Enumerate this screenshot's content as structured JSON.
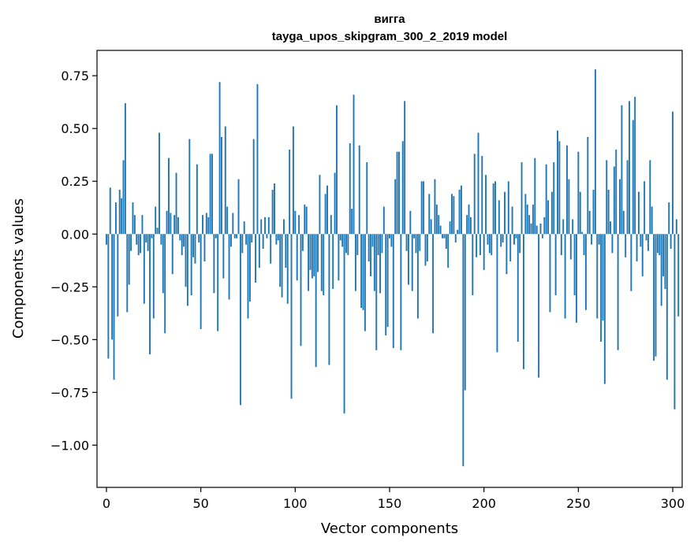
{
  "chart_data": {
    "type": "bar",
    "title": "вигга",
    "subtitle": "tayga_upos_skipgram_300_2_2019 model",
    "xlabel": "Vector components",
    "ylabel": "Components values",
    "xlim": [
      -5,
      305
    ],
    "ylim": [
      -1.2,
      0.87
    ],
    "xticks": [
      0,
      50,
      100,
      150,
      200,
      250,
      300
    ],
    "xtick_labels": [
      "0",
      "50",
      "100",
      "150",
      "200",
      "250",
      "300"
    ],
    "yticks": [
      0.75,
      0.5,
      0.25,
      0.0,
      -0.25,
      -0.5,
      -0.75,
      -1.0
    ],
    "ytick_labels": [
      "0.75",
      "0.50",
      "0.25",
      "0.00",
      "−0.25",
      "−0.50",
      "−0.75",
      "−1.00"
    ],
    "grid": false,
    "color": "#1f77b4",
    "values": [
      -0.05,
      -0.59,
      0.22,
      -0.5,
      -0.69,
      0.15,
      -0.39,
      0.21,
      0.17,
      0.35,
      0.62,
      -0.37,
      -0.24,
      -0.08,
      0.15,
      0.09,
      -0.05,
      -0.1,
      -0.09,
      0.09,
      -0.33,
      -0.04,
      -0.08,
      -0.57,
      -0.02,
      -0.4,
      0.13,
      0.03,
      0.48,
      -0.05,
      -0.28,
      -0.47,
      0.11,
      0.36,
      0.1,
      -0.19,
      0.09,
      0.29,
      0.08,
      -0.03,
      -0.1,
      -0.06,
      -0.25,
      -0.34,
      0.45,
      -0.29,
      -0.11,
      -0.14,
      0.33,
      -0.04,
      -0.45,
      0.09,
      -0.13,
      0.1,
      0.08,
      0.38,
      0.38,
      -0.28,
      -0.02,
      -0.46,
      0.72,
      0.46,
      -0.21,
      0.51,
      0.13,
      -0.31,
      -0.06,
      0.1,
      -0.02,
      -0.02,
      0.26,
      -0.81,
      -0.09,
      0.06,
      -0.05,
      -0.4,
      -0.32,
      -0.04,
      0.45,
      -0.23,
      0.71,
      -0.16,
      0.07,
      -0.07,
      0.08,
      -0.02,
      0.08,
      -0.14,
      0.21,
      0.24,
      -0.05,
      -0.03,
      -0.25,
      -0.3,
      0.07,
      -0.16,
      -0.33,
      0.4,
      -0.78,
      0.51,
      0.11,
      -0.22,
      0.09,
      -0.53,
      -0.08,
      0.14,
      0.13,
      -0.27,
      -0.17,
      -0.21,
      -0.2,
      -0.63,
      -0.18,
      0.28,
      -0.27,
      -0.29,
      0.19,
      0.23,
      -0.62,
      0.09,
      -0.26,
      0.29,
      0.61,
      -0.22,
      -0.03,
      -0.06,
      -0.85,
      -0.09,
      -0.1,
      0.43,
      0.12,
      0.66,
      -0.27,
      -0.1,
      0.42,
      -0.35,
      -0.36,
      -0.46,
      0.34,
      -0.13,
      -0.2,
      -0.06,
      -0.27,
      -0.55,
      -0.1,
      -0.28,
      -0.09,
      0.13,
      -0.48,
      -0.44,
      -0.02,
      -0.06,
      -0.54,
      0.26,
      0.39,
      0.39,
      -0.55,
      0.44,
      0.63,
      -0.08,
      -0.24,
      0.11,
      -0.27,
      -0.02,
      -0.09,
      -0.4,
      -0.08,
      0.25,
      0.25,
      -0.15,
      -0.13,
      0.19,
      0.07,
      -0.47,
      0.26,
      0.14,
      0.09,
      0.04,
      -0.02,
      -0.02,
      -0.07,
      -0.16,
      0.06,
      0.19,
      0.18,
      -0.04,
      0.02,
      0.21,
      0.23,
      -1.1,
      -0.74,
      0.09,
      0.14,
      0.08,
      -0.29,
      0.38,
      -0.11,
      0.48,
      -0.1,
      0.37,
      -0.17,
      0.28,
      -0.05,
      -0.09,
      -0.1,
      0.24,
      0.25,
      -0.56,
      0.16,
      -0.06,
      -0.04,
      0.2,
      -0.19,
      0.25,
      -0.13,
      0.13,
      -0.05,
      -0.02,
      -0.51,
      -0.09,
      0.34,
      -0.64,
      0.19,
      0.14,
      0.09,
      0.05,
      0.14,
      0.36,
      0.04,
      -0.68,
      0.05,
      -0.02,
      0.08,
      0.33,
      0.16,
      -0.37,
      0.2,
      0.34,
      -0.29,
      0.49,
      0.44,
      -0.1,
      0.07,
      -0.4,
      0.42,
      0.26,
      -0.12,
      0.07,
      -0.29,
      -0.42,
      0.39,
      0.2,
      0.01,
      -0.1,
      -0.36,
      0.46,
      0.11,
      -0.05,
      0.21,
      0.78,
      -0.4,
      -0.05,
      -0.51,
      -0.41,
      -0.71,
      0.35,
      0.21,
      0.06,
      -0.09,
      0.32,
      0.4,
      -0.55,
      0.26,
      0.61,
      0.11,
      -0.11,
      0.35,
      0.63,
      -0.27,
      0.54,
      0.65,
      -0.13,
      0.2,
      -0.06,
      -0.2,
      0.25,
      -0.03,
      -0.08,
      0.35,
      0.13,
      -0.6,
      -0.58,
      -0.09,
      -0.1,
      -0.34,
      -0.2,
      -0.26,
      -0.69,
      0.15,
      -0.07,
      0.58,
      -0.83,
      0.07,
      -0.39
    ]
  }
}
